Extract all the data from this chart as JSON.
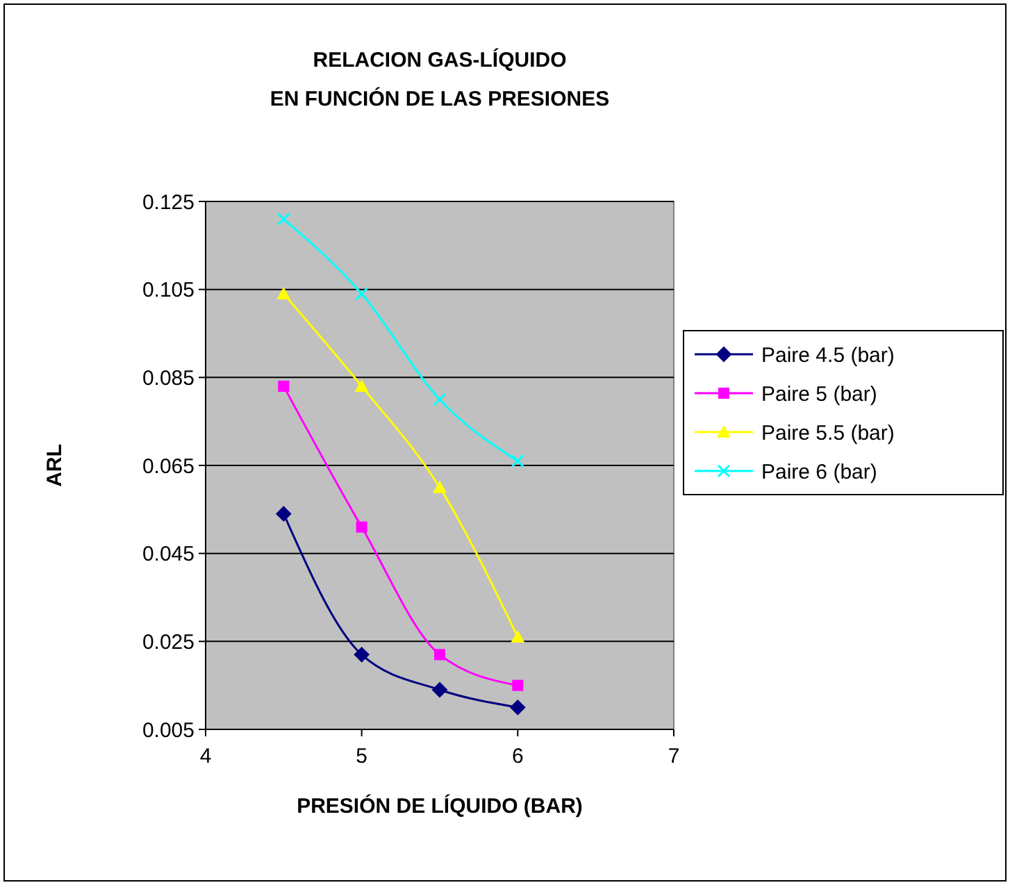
{
  "chart_data": {
    "type": "line",
    "title": "RELACION GAS-LÍQUIDO\nEN FUNCIÓN DE LAS PRESIONES",
    "xlabel": "PRESIÓN DE LÍQUIDO (BAR)",
    "ylabel": "ARL",
    "x": [
      4.5,
      5,
      5.5,
      6
    ],
    "xlim": [
      4,
      7
    ],
    "xticks": [
      4,
      5,
      6,
      7
    ],
    "ylim": [
      0.005,
      0.125
    ],
    "yticks": [
      0.005,
      0.025,
      0.045,
      0.065,
      0.085,
      0.105,
      0.125
    ],
    "grid": "y",
    "legend": "right",
    "series": [
      {
        "name": "Paire 4.5 (bar)",
        "color": "#000080",
        "marker": "diamond",
        "values": [
          0.054,
          0.022,
          0.014,
          0.01
        ]
      },
      {
        "name": "Paire 5 (bar)",
        "color": "#ff00ff",
        "marker": "square",
        "values": [
          0.083,
          0.051,
          0.022,
          0.015
        ]
      },
      {
        "name": "Paire 5.5 (bar)",
        "color": "#ffff00",
        "marker": "triangle",
        "values": [
          0.104,
          0.083,
          0.06,
          0.026
        ]
      },
      {
        "name": "Paire 6 (bar)",
        "color": "#00ffff",
        "marker": "cross",
        "values": [
          0.121,
          0.104,
          0.08,
          0.066
        ]
      }
    ]
  }
}
